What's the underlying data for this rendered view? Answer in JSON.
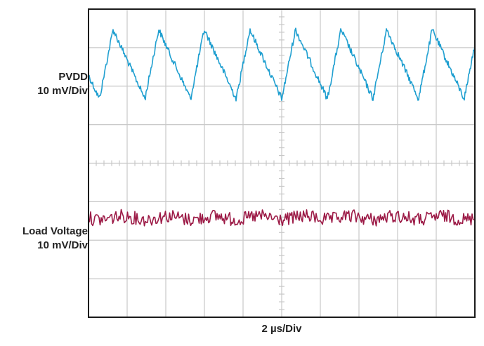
{
  "chart_data": {
    "type": "line",
    "title": "",
    "xlabel": "2 µs/Div",
    "grid": true,
    "x_divisions": 10,
    "y_divisions": 8,
    "time_per_div_us": 2,
    "series": [
      {
        "name": "PVDD",
        "scale": "10 mV/Div",
        "color": "#1f9fd0",
        "waveform": "triangle ripple",
        "period_us": 2.36,
        "peak_to_peak_div": 1.8,
        "center_div": 2.57
      },
      {
        "name": "Load Voltage",
        "scale": "10 mV/Div",
        "color": "#9c1a46",
        "waveform": "noise with low-frequency ripple",
        "peak_to_peak_div": 0.35,
        "center_div": -1.42
      }
    ]
  },
  "labels": {
    "pvdd_name": "PVDD",
    "pvdd_scale": "10 mV/Div",
    "load_name": "Load Voltage",
    "load_scale": "10 mV/Div"
  }
}
